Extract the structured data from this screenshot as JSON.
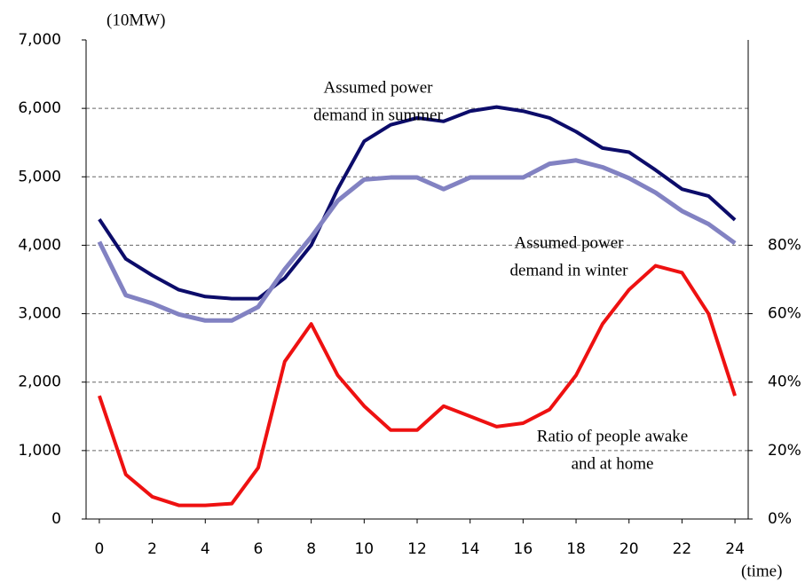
{
  "chart_data": {
    "type": "line",
    "y_unit_label": "(10MW)",
    "x_unit_label": "(time)",
    "x": [
      0,
      1,
      2,
      3,
      4,
      5,
      6,
      7,
      8,
      9,
      10,
      11,
      12,
      13,
      14,
      15,
      16,
      17,
      18,
      19,
      20,
      21,
      22,
      23,
      24
    ],
    "xlim": [
      -0.5,
      24.5
    ],
    "xticks": [
      0,
      2,
      4,
      6,
      8,
      10,
      12,
      14,
      16,
      18,
      20,
      22,
      24
    ],
    "ylim": [
      0,
      7000
    ],
    "yticks": [
      0,
      {
        "value": 1000,
        "label": "1,000"
      },
      {
        "value": 2000,
        "label": "2,000"
      },
      {
        "value": 3000,
        "label": "3,000"
      },
      {
        "value": 4000,
        "label": "4,000"
      },
      {
        "value": 5000,
        "label": "5,000"
      },
      {
        "value": 6000,
        "label": "6,000"
      },
      {
        "value": 7000,
        "label": "7,000"
      }
    ],
    "y2lim": [
      0,
      140
    ],
    "y2ticks": [
      {
        "value": 0,
        "label": "0%"
      },
      {
        "value": 20,
        "label": "20%"
      },
      {
        "value": 40,
        "label": "40%"
      },
      {
        "value": 60,
        "label": "60%"
      },
      {
        "value": 80,
        "label": "80%"
      }
    ],
    "grid": true,
    "series": [
      {
        "name": "Assumed power demand in summer",
        "color": "#0c0c6a",
        "values": [
          4380,
          3800,
          3560,
          3350,
          3250,
          3220,
          3220,
          3520,
          4000,
          4820,
          5520,
          5760,
          5860,
          5810,
          5960,
          6020,
          5960,
          5860,
          5660,
          5420,
          5360,
          5100,
          4820,
          4720,
          4370
        ]
      },
      {
        "name": "Assumed power demand in winter",
        "color": "#8282c2",
        "values": [
          4050,
          3270,
          3150,
          2990,
          2900,
          2900,
          3100,
          3650,
          4120,
          4650,
          4960,
          4990,
          4990,
          4820,
          4990,
          4990,
          4990,
          5190,
          5240,
          5140,
          4980,
          4770,
          4500,
          4310,
          4030
        ]
      },
      {
        "name": "Ratio of people awake and at home",
        "color": "#ee1111",
        "axis": "y2",
        "values": [
          36,
          13,
          6.5,
          4,
          4,
          4.5,
          15,
          46,
          57,
          42,
          33,
          26,
          26,
          33,
          30,
          27,
          28,
          32,
          42,
          57,
          67,
          74,
          72,
          60,
          36
        ]
      }
    ],
    "annotations": [
      {
        "lines": [
          "Assumed power",
          "demand in summer"
        ]
      },
      {
        "lines": [
          "Assumed power",
          "demand in winter"
        ]
      },
      {
        "lines": [
          "Ratio of people awake",
          "and at home"
        ]
      }
    ]
  }
}
